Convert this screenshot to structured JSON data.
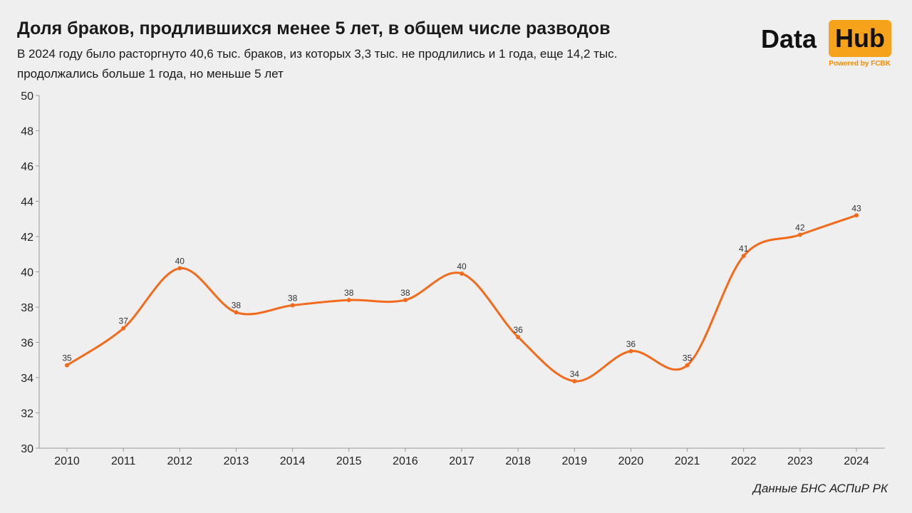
{
  "header": {
    "title": "Доля браков, продлившихся менее 5 лет, в общем числе разводов",
    "subtitle": "В 2024 году было расторгнуто 40,6 тыс. браков, из которых 3,3 тыс. не продлились и 1 года, еще 14,2 тыс. продолжались больше 1 года, но меньше 5 лет"
  },
  "logo": {
    "word1": "Data",
    "word2": "Hub",
    "tagline": "Powered by FCBK"
  },
  "source": "Данные БНС АСПиР РК",
  "colors": {
    "line": "#f26a1b",
    "accent": "#f7a21b",
    "background": "#efefef",
    "axis": "#9a9a9a"
  },
  "chart_data": {
    "type": "line",
    "title": "Доля браков, продлившихся менее 5 лет, в общем числе разводов",
    "xlabel": "",
    "ylabel": "",
    "categories": [
      "2010",
      "2011",
      "2012",
      "2013",
      "2014",
      "2015",
      "2016",
      "2017",
      "2018",
      "2019",
      "2020",
      "2021",
      "2022",
      "2023",
      "2024"
    ],
    "values": [
      34.7,
      36.8,
      40.2,
      37.7,
      38.1,
      38.4,
      38.4,
      39.9,
      36.3,
      33.8,
      35.5,
      34.7,
      40.9,
      42.1,
      43.2
    ],
    "data_labels": [
      "35",
      "37",
      "40",
      "38",
      "38",
      "38",
      "38",
      "40",
      "36",
      "34",
      "36",
      "35",
      "41",
      "42",
      "43"
    ],
    "ylim": [
      30,
      50
    ],
    "yticks": [
      30,
      32,
      34,
      36,
      38,
      40,
      42,
      44,
      46,
      48,
      50
    ],
    "grid": false,
    "smooth": true,
    "legend": "none"
  }
}
